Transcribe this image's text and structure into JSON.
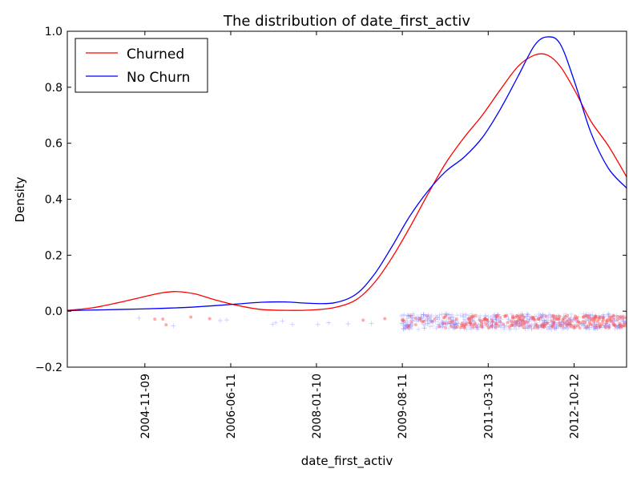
{
  "chart_data": {
    "type": "line",
    "title": "The distribution of date_first_activ",
    "xlabel": "date_first_activ",
    "ylabel": "Density",
    "xlim": [
      "2003-06-05",
      "2013-10-01"
    ],
    "ylim": [
      -0.2,
      1.0
    ],
    "x_ticks": [
      "2004-11-09",
      "2006-06-11",
      "2008-01-10",
      "2009-08-11",
      "2011-03-13",
      "2012-10-12"
    ],
    "y_ticks": [
      "−0.2",
      "0.0",
      "0.2",
      "0.4",
      "0.6",
      "0.8",
      "1.0"
    ],
    "y_tick_values": [
      -0.2,
      0.0,
      0.2,
      0.4,
      0.6,
      0.8,
      1.0
    ],
    "grid": false,
    "legend_position": "top-left",
    "series": [
      {
        "name": "Churned",
        "color": "#ff0000",
        "x": [
          "2003-06-05",
          "2003-11-20",
          "2004-05-10",
          "2004-10-20",
          "2005-02-25",
          "2005-06-10",
          "2005-10-10",
          "2006-03-01",
          "2006-08-01",
          "2007-01-05",
          "2007-06-15",
          "2007-12-01",
          "2008-05-10",
          "2008-10-01",
          "2009-02-01",
          "2009-06-01",
          "2009-10-01",
          "2010-02-01",
          "2010-06-01",
          "2010-10-01",
          "2011-02-01",
          "2011-06-01",
          "2011-10-01",
          "2012-01-20",
          "2012-04-15",
          "2012-07-10",
          "2012-10-15",
          "2013-02-01",
          "2013-06-01",
          "2013-10-01"
        ],
        "y": [
          0.003,
          0.012,
          0.03,
          0.05,
          0.065,
          0.07,
          0.062,
          0.04,
          0.02,
          0.006,
          0.003,
          0.004,
          0.013,
          0.04,
          0.1,
          0.19,
          0.3,
          0.42,
          0.53,
          0.62,
          0.7,
          0.79,
          0.875,
          0.915,
          0.915,
          0.875,
          0.79,
          0.68,
          0.59,
          0.48
        ]
      },
      {
        "name": "No Churn",
        "color": "#0000ff",
        "x": [
          "2003-06-05",
          "2003-11-20",
          "2004-05-10",
          "2004-10-20",
          "2005-02-25",
          "2005-06-10",
          "2005-10-10",
          "2006-03-01",
          "2006-08-01",
          "2007-01-05",
          "2007-06-15",
          "2007-12-01",
          "2008-05-10",
          "2008-10-01",
          "2009-02-01",
          "2009-06-01",
          "2009-10-01",
          "2010-02-01",
          "2010-06-01",
          "2010-10-01",
          "2011-02-01",
          "2011-06-01",
          "2011-10-01",
          "2012-01-20",
          "2012-04-15",
          "2012-07-10",
          "2012-10-15",
          "2013-02-01",
          "2013-06-01",
          "2013-10-01"
        ],
        "y": [
          0.002,
          0.004,
          0.006,
          0.008,
          0.01,
          0.012,
          0.015,
          0.02,
          0.026,
          0.032,
          0.033,
          0.028,
          0.03,
          0.06,
          0.13,
          0.23,
          0.34,
          0.43,
          0.5,
          0.55,
          0.62,
          0.72,
          0.84,
          0.95,
          0.98,
          0.955,
          0.82,
          0.64,
          0.51,
          0.44
        ]
      }
    ],
    "rug": {
      "churned_color": "#ff5555",
      "no_churn_color": "#6666ff",
      "churned_sample_dates": [
        "2005-01-15",
        "2005-04-01",
        "2005-03-10",
        "2005-09-15",
        "2006-01-20",
        "2008-11-20",
        "2009-04-15",
        "2009-09-20",
        "2010-03-01",
        "2010-05-10",
        "2010-09-15",
        "2010-12-01",
        "2011-02-20",
        "2011-06-01",
        "2011-08-15",
        "2011-11-01",
        "2012-01-10",
        "2012-03-05",
        "2012-05-20",
        "2012-07-01",
        "2012-09-10",
        "2012-11-20",
        "2013-01-15",
        "2013-03-20",
        "2013-06-10",
        "2013-08-01"
      ],
      "no_churn_sample_dates": [
        "2004-10-01",
        "2005-05-20",
        "2006-04-01",
        "2006-05-15",
        "2007-03-20",
        "2007-04-10",
        "2007-05-25",
        "2007-08-01",
        "2008-01-20",
        "2008-04-01",
        "2008-08-10",
        "2009-01-15",
        "2009-08-20",
        "2009-10-15",
        "2010-01-10",
        "2010-04-20",
        "2010-08-01",
        "2010-11-15",
        "2011-01-20",
        "2011-04-10",
        "2011-07-01",
        "2011-10-10",
        "2012-01-01",
        "2012-04-01",
        "2012-06-15",
        "2012-09-01",
        "2012-12-10",
        "2013-03-01",
        "2013-05-15",
        "2013-07-20",
        "2013-09-10"
      ]
    }
  }
}
